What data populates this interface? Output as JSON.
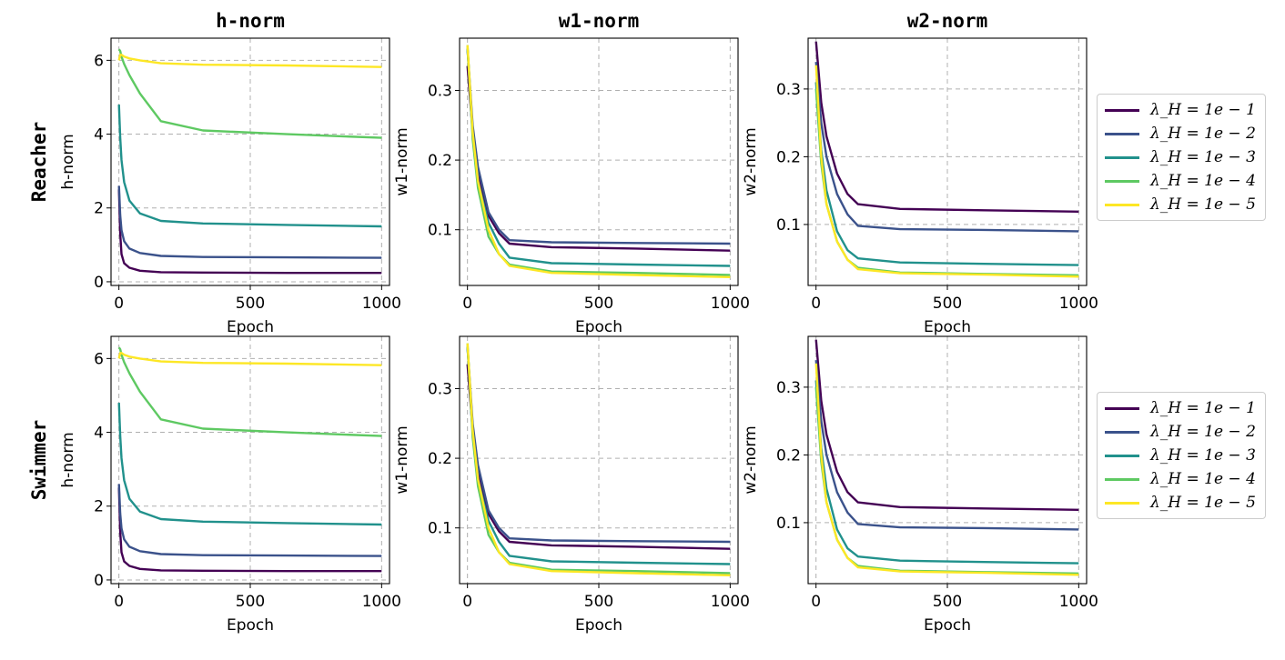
{
  "chart_data": {
    "type": "line",
    "column_titles": [
      "h-norm",
      "w1-norm",
      "w2-norm"
    ],
    "row_labels": [
      "Reacher",
      "Swimmer"
    ],
    "xlabel": "Epoch",
    "xlim": [
      -30,
      1030
    ],
    "xticks": [
      0,
      500,
      1000
    ],
    "series_names": [
      "λ_H = 1e − 1",
      "λ_H = 1e − 2",
      "λ_H = 1e − 3",
      "λ_H = 1e − 4",
      "λ_H = 1e − 5"
    ],
    "series_colors": [
      "#440154",
      "#3b528b",
      "#21918c",
      "#5ec962",
      "#fde725"
    ],
    "panels": [
      {
        "row": 0,
        "col": 0,
        "ylabel": "h-norm",
        "ylim": [
          -0.1,
          6.6
        ],
        "yticks": [
          0,
          2,
          4,
          6
        ],
        "series": [
          {
            "x": [
              0,
              5,
              10,
              20,
              40,
              80,
              160,
              320,
              640,
              1000
            ],
            "y": [
              2.5,
              1.3,
              0.75,
              0.5,
              0.38,
              0.3,
              0.26,
              0.25,
              0.24,
              0.24
            ]
          },
          {
            "x": [
              0,
              5,
              10,
              20,
              40,
              80,
              160,
              320,
              640,
              1000
            ],
            "y": [
              2.6,
              1.8,
              1.4,
              1.1,
              0.9,
              0.78,
              0.7,
              0.67,
              0.66,
              0.65
            ]
          },
          {
            "x": [
              0,
              5,
              10,
              20,
              40,
              80,
              160,
              320,
              640,
              1000
            ],
            "y": [
              4.8,
              3.9,
              3.3,
              2.7,
              2.2,
              1.85,
              1.65,
              1.58,
              1.54,
              1.5
            ]
          },
          {
            "x": [
              0,
              5,
              10,
              20,
              40,
              80,
              160,
              320,
              640,
              1000
            ],
            "y": [
              6.3,
              6.25,
              6.1,
              5.9,
              5.6,
              5.1,
              4.35,
              4.1,
              4.0,
              3.9
            ]
          },
          {
            "x": [
              0,
              5,
              10,
              20,
              40,
              80,
              160,
              320,
              640,
              1000
            ],
            "y": [
              6.0,
              6.15,
              6.15,
              6.1,
              6.05,
              6.0,
              5.92,
              5.88,
              5.86,
              5.82
            ]
          }
        ]
      },
      {
        "row": 0,
        "col": 1,
        "ylabel": "w1-norm",
        "ylim": [
          0.02,
          0.375
        ],
        "yticks": [
          0.1,
          0.2,
          0.3
        ],
        "series": [
          {
            "x": [
              0,
              20,
              40,
              80,
              120,
              160,
              320,
              640,
              1000
            ],
            "y": [
              0.335,
              0.24,
              0.18,
              0.12,
              0.095,
              0.08,
              0.075,
              0.073,
              0.07
            ]
          },
          {
            "x": [
              0,
              20,
              40,
              80,
              120,
              160,
              320,
              640,
              1000
            ],
            "y": [
              0.36,
              0.25,
              0.19,
              0.125,
              0.1,
              0.085,
              0.082,
              0.081,
              0.08
            ]
          },
          {
            "x": [
              0,
              20,
              40,
              80,
              120,
              160,
              320,
              640,
              1000
            ],
            "y": [
              0.36,
              0.24,
              0.17,
              0.11,
              0.08,
              0.06,
              0.052,
              0.05,
              0.048
            ]
          },
          {
            "x": [
              0,
              20,
              40,
              80,
              120,
              160,
              320,
              640,
              1000
            ],
            "y": [
              0.365,
              0.23,
              0.16,
              0.09,
              0.065,
              0.05,
              0.04,
              0.038,
              0.035
            ]
          },
          {
            "x": [
              0,
              20,
              40,
              80,
              120,
              160,
              320,
              640,
              1000
            ],
            "y": [
              0.365,
              0.24,
              0.17,
              0.1,
              0.065,
              0.048,
              0.038,
              0.035,
              0.032
            ]
          }
        ]
      },
      {
        "row": 0,
        "col": 2,
        "ylabel": "w2-norm",
        "ylim": [
          0.01,
          0.375
        ],
        "yticks": [
          0.1,
          0.2,
          0.3
        ],
        "series": [
          {
            "x": [
              0,
              20,
              40,
              80,
              120,
              160,
              320,
              640,
              1000
            ],
            "y": [
              0.37,
              0.28,
              0.23,
              0.175,
              0.145,
              0.13,
              0.123,
              0.121,
              0.119
            ]
          },
          {
            "x": [
              0,
              20,
              40,
              80,
              120,
              160,
              320,
              640,
              1000
            ],
            "y": [
              0.34,
              0.25,
              0.2,
              0.145,
              0.115,
              0.098,
              0.093,
              0.092,
              0.09
            ]
          },
          {
            "x": [
              0,
              20,
              40,
              80,
              120,
              160,
              320,
              640,
              1000
            ],
            "y": [
              0.31,
              0.21,
              0.15,
              0.09,
              0.062,
              0.05,
              0.044,
              0.042,
              0.04
            ]
          },
          {
            "x": [
              0,
              20,
              40,
              80,
              120,
              160,
              320,
              640,
              1000
            ],
            "y": [
              0.3,
              0.19,
              0.13,
              0.075,
              0.048,
              0.036,
              0.029,
              0.027,
              0.025
            ]
          },
          {
            "x": [
              0,
              20,
              40,
              80,
              120,
              160,
              320,
              640,
              1000
            ],
            "y": [
              0.335,
              0.2,
              0.13,
              0.075,
              0.048,
              0.034,
              0.028,
              0.026,
              0.023
            ]
          }
        ]
      },
      {
        "row": 1,
        "col": 0,
        "ylabel": "h-norm",
        "ylim": [
          -0.1,
          6.6
        ],
        "yticks": [
          0,
          2,
          4,
          6
        ],
        "series": [
          {
            "x": [
              0,
              5,
              10,
              20,
              40,
              80,
              160,
              320,
              640,
              1000
            ],
            "y": [
              2.5,
              1.3,
              0.75,
              0.5,
              0.38,
              0.3,
              0.26,
              0.25,
              0.24,
              0.24
            ]
          },
          {
            "x": [
              0,
              5,
              10,
              20,
              40,
              80,
              160,
              320,
              640,
              1000
            ],
            "y": [
              2.6,
              1.8,
              1.4,
              1.1,
              0.9,
              0.78,
              0.7,
              0.67,
              0.66,
              0.65
            ]
          },
          {
            "x": [
              0,
              5,
              10,
              20,
              40,
              80,
              160,
              320,
              640,
              1000
            ],
            "y": [
              4.8,
              3.9,
              3.3,
              2.7,
              2.2,
              1.85,
              1.65,
              1.58,
              1.54,
              1.5
            ]
          },
          {
            "x": [
              0,
              5,
              10,
              20,
              40,
              80,
              160,
              320,
              640,
              1000
            ],
            "y": [
              6.3,
              6.25,
              6.1,
              5.9,
              5.6,
              5.1,
              4.35,
              4.1,
              4.0,
              3.9
            ]
          },
          {
            "x": [
              0,
              5,
              10,
              20,
              40,
              80,
              160,
              320,
              640,
              1000
            ],
            "y": [
              6.0,
              6.15,
              6.15,
              6.1,
              6.05,
              6.0,
              5.92,
              5.88,
              5.86,
              5.82
            ]
          }
        ]
      },
      {
        "row": 1,
        "col": 1,
        "ylabel": "w1-norm",
        "ylim": [
          0.02,
          0.375
        ],
        "yticks": [
          0.1,
          0.2,
          0.3
        ],
        "series": [
          {
            "x": [
              0,
              20,
              40,
              80,
              120,
              160,
              320,
              640,
              1000
            ],
            "y": [
              0.335,
              0.24,
              0.18,
              0.12,
              0.095,
              0.08,
              0.075,
              0.073,
              0.07
            ]
          },
          {
            "x": [
              0,
              20,
              40,
              80,
              120,
              160,
              320,
              640,
              1000
            ],
            "y": [
              0.36,
              0.25,
              0.19,
              0.125,
              0.1,
              0.085,
              0.082,
              0.081,
              0.08
            ]
          },
          {
            "x": [
              0,
              20,
              40,
              80,
              120,
              160,
              320,
              640,
              1000
            ],
            "y": [
              0.36,
              0.24,
              0.17,
              0.11,
              0.08,
              0.06,
              0.052,
              0.05,
              0.048
            ]
          },
          {
            "x": [
              0,
              20,
              40,
              80,
              120,
              160,
              320,
              640,
              1000
            ],
            "y": [
              0.365,
              0.23,
              0.16,
              0.09,
              0.065,
              0.05,
              0.04,
              0.038,
              0.035
            ]
          },
          {
            "x": [
              0,
              20,
              40,
              80,
              120,
              160,
              320,
              640,
              1000
            ],
            "y": [
              0.365,
              0.24,
              0.17,
              0.1,
              0.065,
              0.048,
              0.038,
              0.035,
              0.032
            ]
          }
        ]
      },
      {
        "row": 1,
        "col": 2,
        "ylabel": "w2-norm",
        "ylim": [
          0.01,
          0.375
        ],
        "yticks": [
          0.1,
          0.2,
          0.3
        ],
        "series": [
          {
            "x": [
              0,
              20,
              40,
              80,
              120,
              160,
              320,
              640,
              1000
            ],
            "y": [
              0.37,
              0.28,
              0.23,
              0.175,
              0.145,
              0.13,
              0.123,
              0.121,
              0.119
            ]
          },
          {
            "x": [
              0,
              20,
              40,
              80,
              120,
              160,
              320,
              640,
              1000
            ],
            "y": [
              0.34,
              0.25,
              0.2,
              0.145,
              0.115,
              0.098,
              0.093,
              0.092,
              0.09
            ]
          },
          {
            "x": [
              0,
              20,
              40,
              80,
              120,
              160,
              320,
              640,
              1000
            ],
            "y": [
              0.31,
              0.21,
              0.15,
              0.09,
              0.062,
              0.05,
              0.044,
              0.042,
              0.04
            ]
          },
          {
            "x": [
              0,
              20,
              40,
              80,
              120,
              160,
              320,
              640,
              1000
            ],
            "y": [
              0.3,
              0.19,
              0.13,
              0.075,
              0.048,
              0.036,
              0.029,
              0.027,
              0.025
            ]
          },
          {
            "x": [
              0,
              20,
              40,
              80,
              120,
              160,
              320,
              640,
              1000
            ],
            "y": [
              0.335,
              0.2,
              0.13,
              0.075,
              0.048,
              0.034,
              0.028,
              0.026,
              0.023
            ]
          }
        ]
      }
    ],
    "legends": [
      {
        "row": 0,
        "placement": "right",
        "entries": [
          "λ_H = 1e − 1",
          "λ_H = 1e − 2",
          "λ_H = 1e − 3",
          "λ_H = 1e − 4",
          "λ_H = 1e − 5"
        ]
      },
      {
        "row": 1,
        "placement": "right",
        "entries": [
          "λ_H = 1e − 1",
          "λ_H = 1e − 2",
          "λ_H = 1e − 3",
          "λ_H = 1e − 4",
          "λ_H = 1e − 5"
        ]
      }
    ],
    "grid": true
  }
}
